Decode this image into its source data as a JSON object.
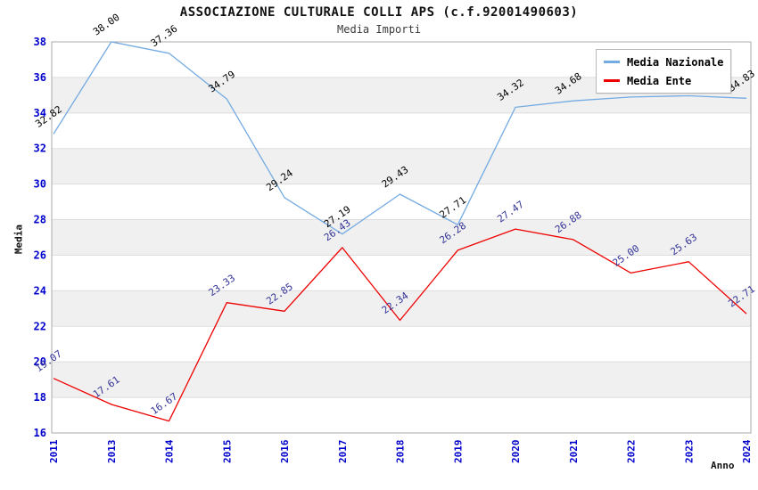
{
  "title": "ASSOCIAZIONE CULTURALE COLLI APS (c.f.92001490603)",
  "subtitle": "Media Importi",
  "legend": {
    "items": [
      {
        "label": "Media Nazionale",
        "color": "#74ABE2"
      },
      {
        "label": "Media Ente",
        "color": "#EE0000"
      }
    ]
  },
  "colors": {
    "tick_label": "#0000CC",
    "band_gray": "#F0F0F0",
    "gridline": "#DDDDDD",
    "frame": "#AAAAAA",
    "title_text": "#111111",
    "subtitle_text": "#3A3A3A"
  },
  "chart_data": {
    "type": "line",
    "title": "ASSOCIAZIONE CULTURALE COLLI APS (c.f.92001490603)",
    "subtitle": "Media Importi",
    "xlabel": "Anno",
    "ylabel": "Media",
    "x": [
      "2011",
      "2013",
      "2014",
      "2015",
      "2016",
      "2017",
      "2018",
      "2019",
      "2020",
      "2021",
      "2022",
      "2023",
      "2024"
    ],
    "series": [
      {
        "name": "Media Nazionale",
        "color": "#74ABE2",
        "label_color": "#000000",
        "values": [
          32.82,
          38.0,
          37.36,
          34.79,
          29.24,
          27.19,
          29.43,
          27.71,
          34.32,
          34.68,
          34.9,
          34.97,
          34.83
        ]
      },
      {
        "name": "Media Ente",
        "color": "#EE0000",
        "label_color": "#333399",
        "values": [
          19.07,
          17.61,
          16.67,
          23.33,
          22.85,
          26.43,
          22.34,
          26.28,
          27.47,
          26.88,
          25.0,
          25.63,
          22.71
        ]
      }
    ],
    "ylim": [
      16,
      38
    ],
    "ytick_step": 2,
    "yticks": [
      38,
      36,
      34,
      32,
      30,
      28,
      26,
      24,
      22,
      20,
      18,
      16
    ],
    "grid": "horizontal-alternating-bands",
    "legend_position": "top-right",
    "point_labels": "shown-rotated"
  }
}
